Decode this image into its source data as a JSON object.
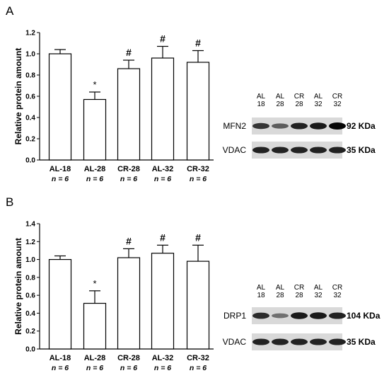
{
  "panels": [
    {
      "letter": "A",
      "chart_data": {
        "type": "bar",
        "ylabel": "Relative protein amount",
        "ylim": [
          0,
          1.2
        ],
        "yticks": [
          "0.0",
          "0.2",
          "0.4",
          "0.6",
          "0.8",
          "1.0",
          "1.2"
        ],
        "categories": [
          "AL-18",
          "AL-28",
          "CR-28",
          "AL-32",
          "CR-32"
        ],
        "n_labels": [
          "n = 6",
          "n = 6",
          "n = 6",
          "n = 6",
          "n = 6"
        ],
        "values": [
          1.0,
          0.57,
          0.86,
          0.96,
          0.92
        ],
        "errors": [
          0.04,
          0.07,
          0.08,
          0.11,
          0.11
        ],
        "markers": [
          "",
          "*",
          "#",
          "#",
          "#"
        ]
      },
      "blot": {
        "lanes": [
          "AL 18",
          "AL 28",
          "CR 28",
          "AL 32",
          "CR 32"
        ],
        "rows": [
          {
            "name": "MFN2",
            "kda": "92 KDa",
            "intensity": [
              0.75,
              0.55,
              0.85,
              0.9,
              1.0
            ]
          },
          {
            "name": "VDAC",
            "kda": "35 KDa",
            "intensity": [
              0.85,
              0.85,
              0.85,
              0.85,
              0.85
            ]
          }
        ]
      }
    },
    {
      "letter": "B",
      "chart_data": {
        "type": "bar",
        "ylabel": "Relative protein amount",
        "ylim": [
          0,
          1.4
        ],
        "yticks": [
          "0.0",
          "0.2",
          "0.4",
          "0.6",
          "0.8",
          "1.0",
          "1.2",
          "1.4"
        ],
        "categories": [
          "AL-18",
          "AL-28",
          "CR-28",
          "AL-32",
          "CR-32"
        ],
        "n_labels": [
          "n = 6",
          "n = 6",
          "n = 6",
          "n = 6",
          "n = 6"
        ],
        "values": [
          1.0,
          0.51,
          1.02,
          1.07,
          0.98
        ],
        "errors": [
          0.04,
          0.14,
          0.1,
          0.09,
          0.18
        ],
        "markers": [
          "",
          "*",
          "#",
          "#",
          "#"
        ]
      },
      "blot": {
        "lanes": [
          "AL 18",
          "AL 28",
          "CR 28",
          "AL 32",
          "CR 32"
        ],
        "rows": [
          {
            "name": "DRP1",
            "kda": "104 KDa",
            "intensity": [
              0.8,
              0.45,
              0.9,
              0.9,
              0.85
            ]
          },
          {
            "name": "VDAC",
            "kda": "35 KDa",
            "intensity": [
              0.85,
              0.85,
              0.85,
              0.85,
              0.85
            ]
          }
        ]
      }
    }
  ]
}
